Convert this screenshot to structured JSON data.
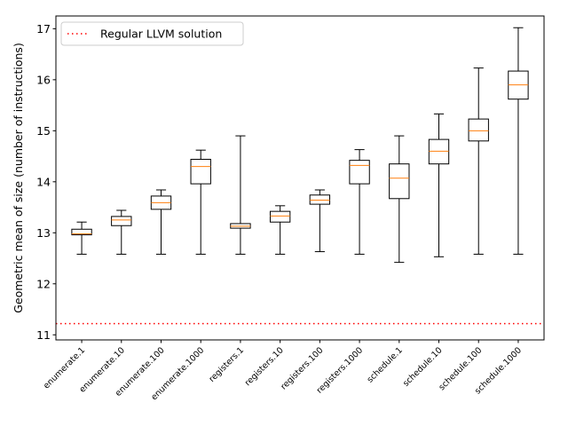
{
  "chart_data": {
    "type": "box",
    "ylabel": "Geometric mean of size (number of instructions)",
    "xlabel": "",
    "title": "",
    "ylim": [
      10.9,
      17.25
    ],
    "yticks": [
      11,
      12,
      13,
      14,
      15,
      16,
      17
    ],
    "grid": false,
    "legend": {
      "position": "top-left",
      "entries": [
        {
          "label": "Regular LLVM solution",
          "style": "dotted",
          "color": "#ff0000"
        }
      ]
    },
    "reference_line": {
      "name": "Regular LLVM solution",
      "y": 11.22,
      "color": "#ff0000"
    },
    "colors": {
      "box": "#000000",
      "median": "#ff7f0e"
    },
    "categories": [
      "enumerate.1",
      "enumerate.10",
      "enumerate.100",
      "enumerate.1000",
      "registers.1",
      "registers.10",
      "registers.100",
      "registers.1000",
      "schedule.1",
      "schedule.10",
      "schedule.100",
      "schedule.1000"
    ],
    "boxes": [
      {
        "whislo": 12.58,
        "q1": 12.96,
        "med": 12.98,
        "q3": 13.07,
        "whishi": 13.21
      },
      {
        "whislo": 12.58,
        "q1": 13.14,
        "med": 13.25,
        "q3": 13.32,
        "whishi": 13.44
      },
      {
        "whislo": 12.58,
        "q1": 13.46,
        "med": 13.59,
        "q3": 13.72,
        "whishi": 13.84
      },
      {
        "whislo": 12.58,
        "q1": 13.96,
        "med": 14.3,
        "q3": 14.44,
        "whishi": 14.62
      },
      {
        "whislo": 12.58,
        "q1": 13.09,
        "med": 13.13,
        "q3": 13.18,
        "whishi": 14.9
      },
      {
        "whislo": 12.58,
        "q1": 13.21,
        "med": 13.33,
        "q3": 13.42,
        "whishi": 13.53
      },
      {
        "whislo": 12.63,
        "q1": 13.56,
        "med": 13.64,
        "q3": 13.74,
        "whishi": 13.84
      },
      {
        "whislo": 12.58,
        "q1": 13.96,
        "med": 14.32,
        "q3": 14.42,
        "whishi": 14.63
      },
      {
        "whislo": 12.42,
        "q1": 13.67,
        "med": 14.07,
        "q3": 14.35,
        "whishi": 14.9
      },
      {
        "whislo": 12.53,
        "q1": 14.35,
        "med": 14.6,
        "q3": 14.83,
        "whishi": 15.33
      },
      {
        "whislo": 12.58,
        "q1": 14.8,
        "med": 15.0,
        "q3": 15.23,
        "whishi": 16.23
      },
      {
        "whislo": 12.58,
        "q1": 15.62,
        "med": 15.9,
        "q3": 16.17,
        "whishi": 17.02
      }
    ]
  }
}
